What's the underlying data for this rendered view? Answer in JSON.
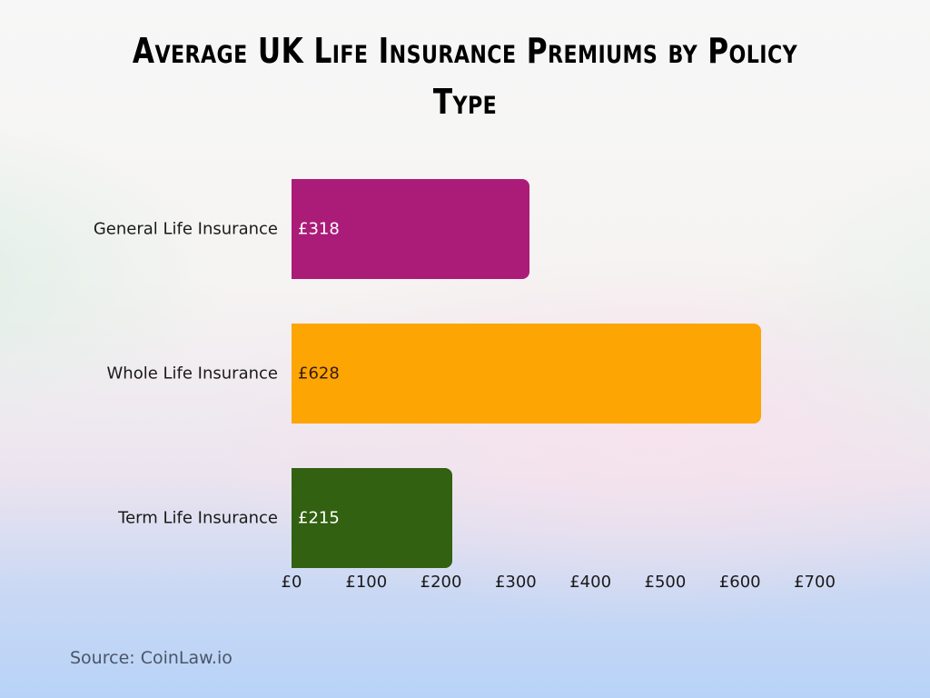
{
  "chart_data": {
    "type": "bar",
    "orientation": "horizontal",
    "title": "Average UK Life Insurance Premiums by Policy Type",
    "categories": [
      "General Life Insurance",
      "Whole Life Insurance",
      "Term Life Insurance"
    ],
    "values": [
      318,
      628,
      215
    ],
    "value_labels": [
      "£318",
      "£628",
      "£215"
    ],
    "colors": [
      "#ab1c78",
      "#fca503",
      "#326111"
    ],
    "value_label_colors": [
      "#ffffff",
      "#3a1a10",
      "#ffffff"
    ],
    "xlabel": "",
    "ylabel": "",
    "xlim": [
      0,
      700
    ],
    "x_ticks": [
      "£0",
      "£100",
      "£200",
      "£300",
      "£400",
      "£500",
      "£600",
      "£700"
    ],
    "grid": false,
    "legend": "none"
  },
  "source": "Source: CoinLaw.io"
}
